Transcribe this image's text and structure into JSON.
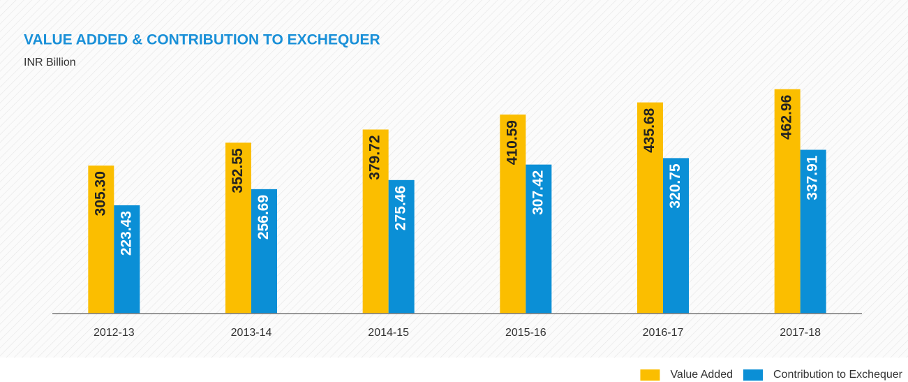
{
  "chart_data": {
    "type": "bar",
    "title": "VALUE ADDED & CONTRIBUTION TO EXCHEQUER",
    "subtitle": "INR Billion",
    "categories": [
      "2012-13",
      "2013-14",
      "2014-15",
      "2015-16",
      "2016-17",
      "2017-18"
    ],
    "series": [
      {
        "name": "Value Added",
        "color": "#fbbe00",
        "values": [
          305.3,
          352.55,
          379.72,
          410.59,
          435.68,
          462.96
        ],
        "value_labels": [
          "305.30",
          "352.55",
          "379.72",
          "410.59",
          "435.68",
          "462.96"
        ]
      },
      {
        "name": "Contribution to Exchequer",
        "color": "#0b8fd6",
        "values": [
          223.43,
          256.69,
          275.46,
          307.42,
          320.75,
          337.91
        ],
        "value_labels": [
          "223.43",
          "256.69",
          "275.46",
          "307.42",
          "320.75",
          "337.91"
        ]
      }
    ],
    "ylim": [
      0,
      500
    ],
    "legend": "bottom-right"
  }
}
